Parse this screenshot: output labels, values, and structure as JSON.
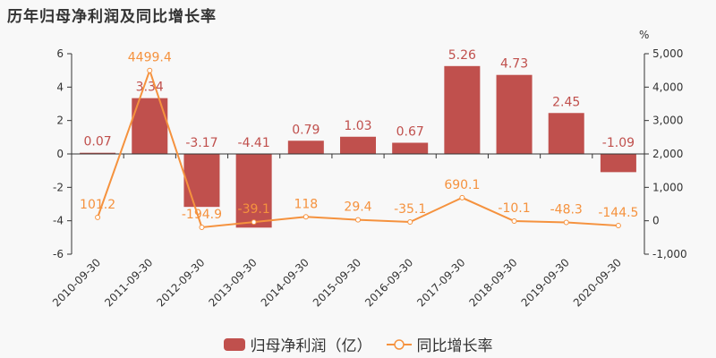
{
  "title": "历年归母净利润及同比增长率",
  "colors": {
    "bar": "#c0504d",
    "line": "#f5923e",
    "axis": "#333333",
    "background": "#f8f8f8"
  },
  "legend": {
    "bar_label": "归母净利润（亿）",
    "line_label": "同比增长率"
  },
  "right_axis_unit": "%",
  "chart_data": {
    "type": "bar+line",
    "title": "历年归母净利润及同比增长率",
    "categories": [
      "2010-09-30",
      "2011-09-30",
      "2012-09-30",
      "2013-09-30",
      "2014-09-30",
      "2015-09-30",
      "2016-09-30",
      "2017-09-30",
      "2018-09-30",
      "2019-09-30",
      "2020-09-30"
    ],
    "series": [
      {
        "name": "归母净利润（亿）",
        "type": "bar",
        "axis": "left",
        "values": [
          0.07,
          3.34,
          -3.17,
          -4.41,
          0.79,
          1.03,
          0.67,
          5.26,
          4.73,
          2.45,
          -1.09
        ],
        "labels": [
          "0.07",
          "3.34",
          "-3.17",
          "-4.41",
          "0.79",
          "1.03",
          "0.67",
          "5.26",
          "4.73",
          "2.45",
          "-1.09"
        ]
      },
      {
        "name": "同比增长率",
        "type": "line",
        "axis": "right",
        "values": [
          101.2,
          4499.4,
          -194.9,
          -39.1,
          118,
          29.4,
          -35.1,
          690.1,
          -10.1,
          -48.3,
          -144.5
        ],
        "labels": [
          "101.2",
          "4499.4",
          "-194.9",
          "-39.1",
          "118",
          "29.4",
          "-35.1",
          "690.1",
          "-10.1",
          "-48.3",
          "-144.5"
        ]
      }
    ],
    "y_left": {
      "ylim": [
        -6,
        6
      ],
      "ticks": [
        "6",
        "4",
        "2",
        "0",
        "-2",
        "-4",
        "-6"
      ]
    },
    "y_right": {
      "ylim": [
        -1000,
        5000
      ],
      "ticks": [
        "5,000",
        "4,000",
        "3,000",
        "2,000",
        "1,000",
        "0",
        "-1,000"
      ],
      "unit": "%"
    },
    "grid": false,
    "legend_position": "bottom"
  }
}
